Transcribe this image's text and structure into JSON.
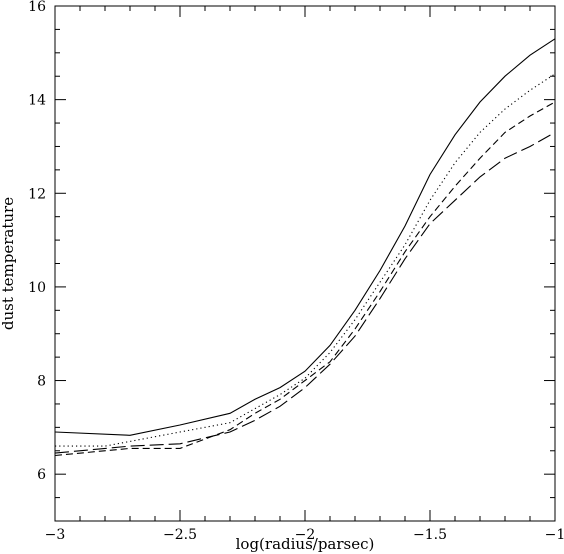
{
  "chart_data": {
    "type": "line",
    "xlabel": "log(radius/parsec)",
    "ylabel": "dust temperature",
    "xlim": [
      -3,
      -1
    ],
    "ylim": [
      5,
      16
    ],
    "xticks": [
      -3,
      -2.5,
      -2,
      -1.5,
      -1
    ],
    "xtick_labels": [
      "−3",
      "−2.5",
      "−2",
      "−1.5",
      "−1"
    ],
    "yticks": [
      6,
      8,
      10,
      12,
      14,
      16
    ],
    "ytick_labels": [
      "6",
      "8",
      "10",
      "12",
      "14",
      "16"
    ],
    "x_minor_step": 0.1,
    "y_minor_step": 0.5,
    "grid": false,
    "series": [
      {
        "line_style": "solid",
        "color": "#000000",
        "x": [
          -3.0,
          -2.7,
          -2.5,
          -2.3,
          -2.2,
          -2.1,
          -2.0,
          -1.9,
          -1.8,
          -1.7,
          -1.6,
          -1.5,
          -1.4,
          -1.3,
          -1.2,
          -1.1,
          -1.0
        ],
        "y": [
          6.9,
          6.83,
          7.05,
          7.3,
          7.6,
          7.85,
          8.2,
          8.75,
          9.5,
          10.35,
          11.3,
          12.4,
          13.25,
          13.95,
          14.5,
          14.95,
          15.3
        ]
      },
      {
        "line_style": "dotted",
        "color": "#000000",
        "x": [
          -3.0,
          -2.8,
          -2.7,
          -2.5,
          -2.3,
          -2.2,
          -2.1,
          -2.0,
          -1.9,
          -1.8,
          -1.7,
          -1.6,
          -1.5,
          -1.4,
          -1.3,
          -1.2,
          -1.1,
          -1.0
        ],
        "y": [
          6.6,
          6.6,
          6.7,
          6.9,
          7.1,
          7.4,
          7.7,
          8.05,
          8.6,
          9.3,
          10.1,
          10.9,
          11.85,
          12.65,
          13.3,
          13.8,
          14.2,
          14.55
        ]
      },
      {
        "line_style": "dashed",
        "color": "#000000",
        "x": [
          -3.0,
          -2.7,
          -2.5,
          -2.3,
          -2.2,
          -2.1,
          -2.0,
          -1.9,
          -1.8,
          -1.7,
          -1.6,
          -1.5,
          -1.4,
          -1.3,
          -1.2,
          -1.1,
          -1.0
        ],
        "y": [
          6.4,
          6.55,
          6.55,
          6.95,
          7.3,
          7.6,
          8.0,
          8.4,
          9.1,
          9.9,
          10.75,
          11.5,
          12.15,
          12.75,
          13.3,
          13.65,
          13.95
        ]
      },
      {
        "line_style": "long-dashed",
        "color": "#000000",
        "x": [
          -3.0,
          -2.7,
          -2.5,
          -2.3,
          -2.2,
          -2.1,
          -2.0,
          -1.9,
          -1.8,
          -1.7,
          -1.6,
          -1.5,
          -1.4,
          -1.3,
          -1.2,
          -1.1,
          -1.0
        ],
        "y": [
          6.45,
          6.6,
          6.65,
          6.9,
          7.15,
          7.45,
          7.85,
          8.35,
          8.95,
          9.75,
          10.6,
          11.35,
          11.85,
          12.35,
          12.75,
          13.0,
          13.3
        ]
      }
    ]
  }
}
